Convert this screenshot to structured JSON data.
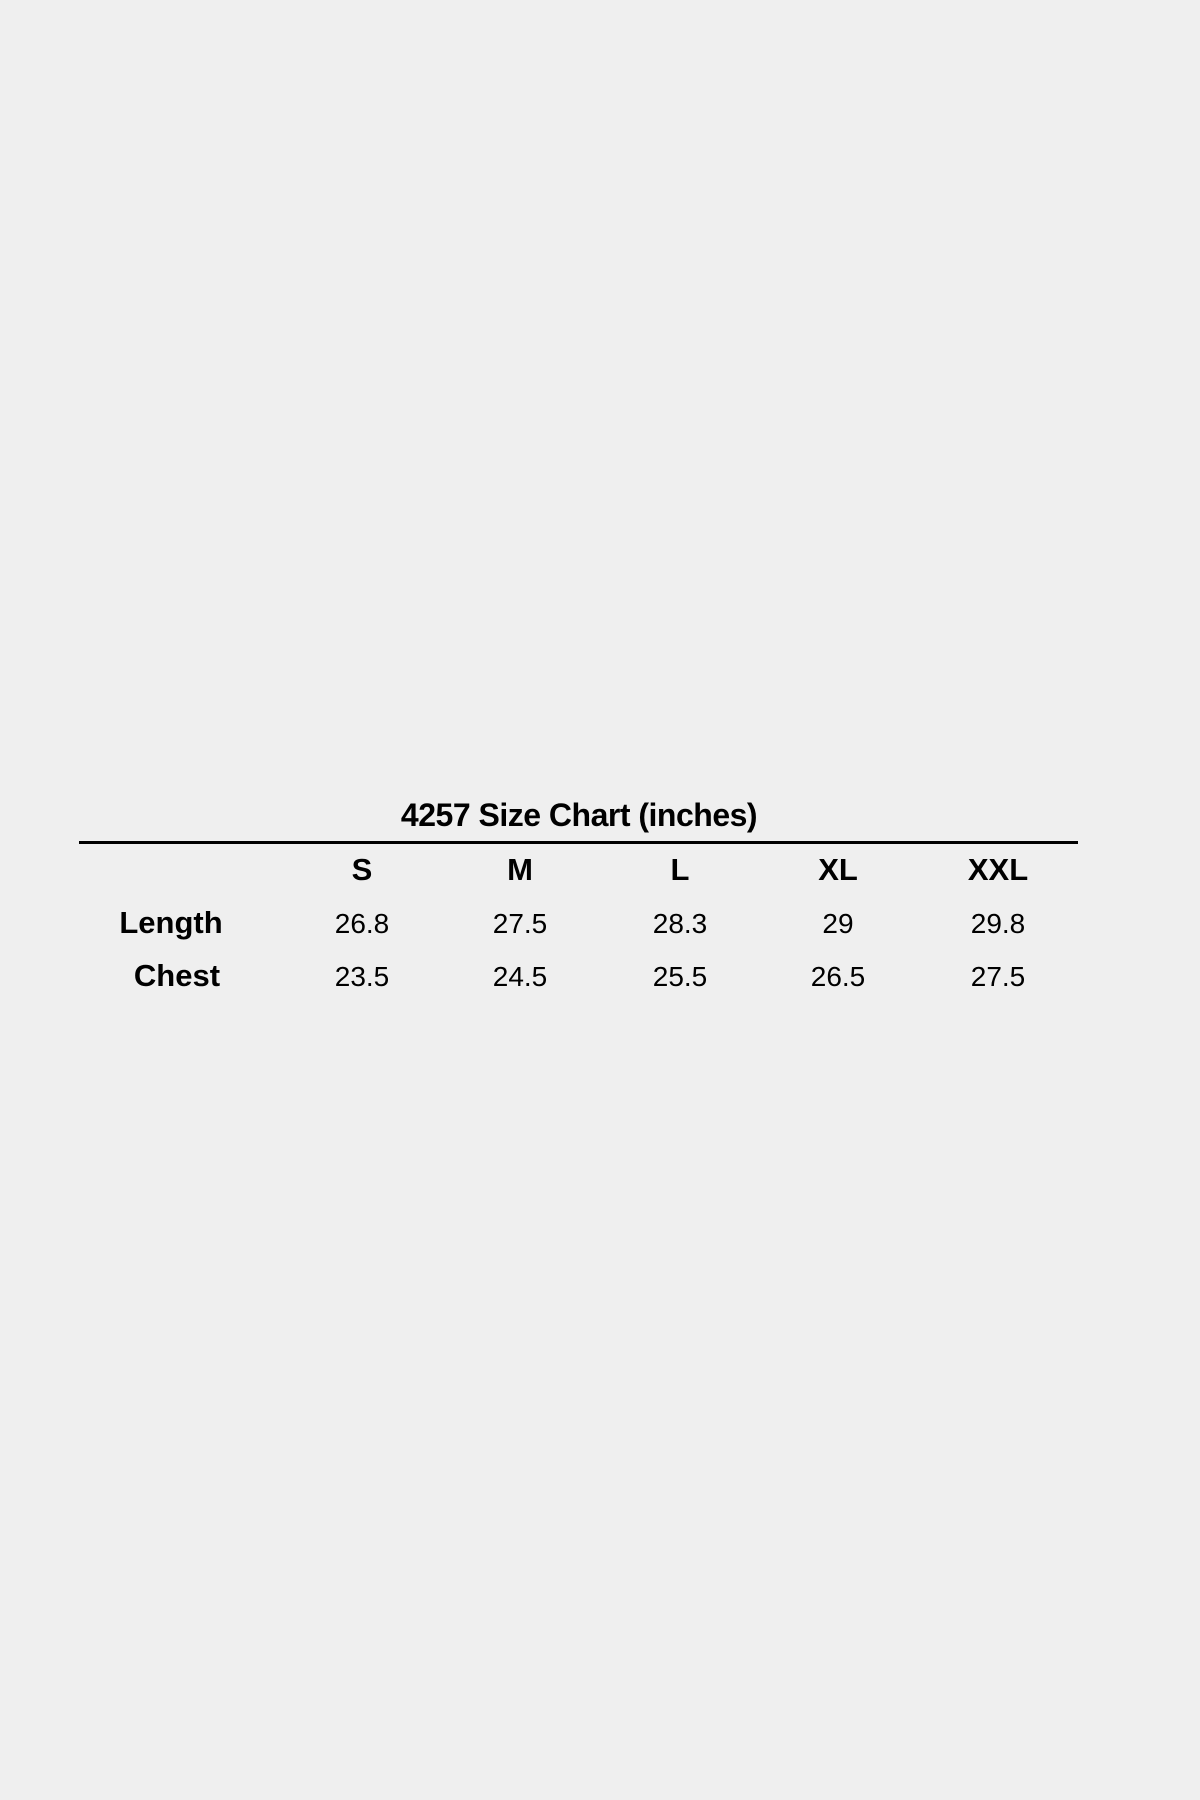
{
  "title": "4257 Size Chart (inches)",
  "table": {
    "columns": [
      "S",
      "M",
      "L",
      "XL",
      "XXL"
    ],
    "rows": [
      {
        "label": "Length",
        "values": [
          "26.8",
          "27.5",
          "28.3",
          "29",
          "29.8"
        ]
      },
      {
        "label": "Chest",
        "values": [
          "23.5",
          "24.5",
          "25.5",
          "26.5",
          "27.5"
        ]
      }
    ]
  }
}
